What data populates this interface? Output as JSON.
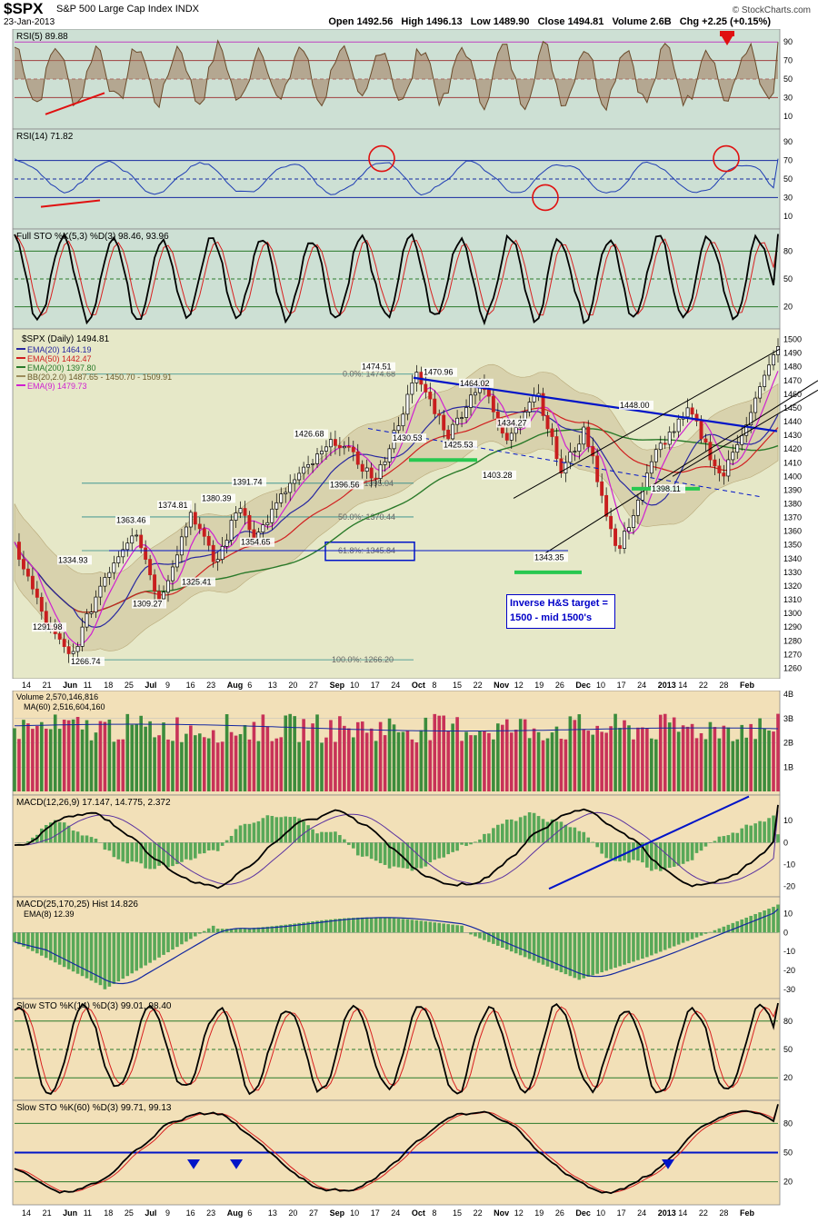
{
  "header": {
    "ticker": "$SPX",
    "name": "S&P 500 Large Cap Index",
    "exchange": "INDX",
    "date": "23-Jan-2013",
    "brand": "© StockCharts.com",
    "open": "Open 1492.56",
    "high": "High 1496.13",
    "low": "Low 1489.90",
    "close": "Close 1494.81",
    "volume": "Volume 2.6B",
    "change": "Chg +2.25 (+0.15%)"
  },
  "colors": {
    "panel_rsi": "#cde0d4",
    "panel_price": "#e6e8c8",
    "panel_lower": "#f0d6b0",
    "price_up": "#000000",
    "price_down": "#c81e1e",
    "ema20": "#2828a0",
    "ema50": "#d02020",
    "ema200": "#2a7a2a",
    "ema9": "#d020d0",
    "trendline": "#0014c8",
    "support": "#28c850",
    "vol_up": "#3c8c3c",
    "vol_down": "#c83258"
  },
  "time_axis": {
    "labels": [
      "14",
      "21",
      "Jun",
      "11",
      "18",
      "25",
      "Jul",
      "9",
      "16",
      "23",
      "Aug",
      "6",
      "13",
      "20",
      "27",
      "Sep",
      "10",
      "17",
      "24",
      "Oct",
      "8",
      "15",
      "22",
      "Nov",
      "12",
      "19",
      "26",
      "Dec",
      "10",
      "17",
      "24",
      "2013",
      "14",
      "22",
      "28",
      "Feb"
    ]
  },
  "chart_data": [
    {
      "type": "line",
      "title": "RSI(5) 89.88",
      "series": [
        {
          "name": "RSI(5)",
          "last": 89.88
        }
      ],
      "y_ticks": [
        90,
        70,
        50,
        30,
        10
      ],
      "ylim": [
        0,
        100
      ],
      "reference_lines": [
        90,
        70,
        50,
        30
      ]
    },
    {
      "type": "line",
      "title": "RSI(14) 71.82",
      "series": [
        {
          "name": "RSI(14)",
          "last": 71.82
        }
      ],
      "y_ticks": [
        90,
        70,
        50,
        30,
        10
      ],
      "ylim": [
        0,
        100
      ],
      "reference_lines": [
        70,
        50,
        30
      ]
    },
    {
      "type": "line",
      "title": "Full STO %K(5,3) %D(3) 98.46, 93.96",
      "series": [
        {
          "name": "%K(5,3)",
          "last": 98.46
        },
        {
          "name": "%D(3)",
          "last": 93.96
        }
      ],
      "y_ticks": [
        80,
        50,
        20
      ],
      "ylim": [
        0,
        100
      ]
    },
    {
      "type": "line",
      "title": "$SPX (Daily) 1494.81",
      "legend": [
        {
          "label": "EMA(20) 1464.19",
          "color": "#2828a0"
        },
        {
          "label": "EMA(50) 1442.47",
          "color": "#d02020"
        },
        {
          "label": "EMA(200) 1397.80",
          "color": "#2a7a2a"
        },
        {
          "label": "BB(20,2.0) 1487.65 - 1450.70 - 1509.91",
          "color": "#9c8c5c"
        },
        {
          "label": "EMA(9) 1479.73",
          "color": "#d020d0"
        }
      ],
      "series": [
        {
          "name": "$SPX",
          "last": 1494.81
        }
      ],
      "y_ticks": [
        1500,
        1490,
        1480,
        1470,
        1460,
        1450,
        1440,
        1430,
        1420,
        1410,
        1400,
        1390,
        1380,
        1370,
        1360,
        1350,
        1340,
        1330,
        1320,
        1310,
        1300,
        1290,
        1280,
        1270,
        1260
      ],
      "ylim": [
        1255,
        1505
      ],
      "price_labels": [
        {
          "label": "1474.51",
          "value": 1474.51
        },
        {
          "label": "1470.96",
          "value": 1470.96
        },
        {
          "label": "1464.02",
          "value": 1464.02
        },
        {
          "label": "1448.00",
          "value": 1448.0
        },
        {
          "label": "1434.27",
          "value": 1434.27
        },
        {
          "label": "1430.53",
          "value": 1430.53
        },
        {
          "label": "1426.68",
          "value": 1426.68
        },
        {
          "label": "1425.53",
          "value": 1425.53
        },
        {
          "label": "1403.28",
          "value": 1403.28
        },
        {
          "label": "1398.11",
          "value": 1398.11
        },
        {
          "label": "1396.56",
          "value": 1396.56
        },
        {
          "label": "1391.74",
          "value": 1391.74
        },
        {
          "label": "1380.39",
          "value": 1380.39
        },
        {
          "label": "1374.81",
          "value": 1374.81
        },
        {
          "label": "1363.46",
          "value": 1363.46
        },
        {
          "label": "1354.65",
          "value": 1354.65
        },
        {
          "label": "1343.35",
          "value": 1343.35
        },
        {
          "label": "1334.93",
          "value": 1334.93
        },
        {
          "label": "1325.41",
          "value": 1325.41
        },
        {
          "label": "1309.27",
          "value": 1309.27
        },
        {
          "label": "1291.98",
          "value": 1291.98
        },
        {
          "label": "1266.74",
          "value": 1266.74
        }
      ],
      "fibonacci": [
        {
          "label": "0.0%: 1474.68",
          "value": 1474.68
        },
        {
          "label": "38.2%: 1395.04",
          "value": 1395.04
        },
        {
          "label": "50.0%: 1370.44",
          "value": 1370.44
        },
        {
          "label": "61.8%: 1345.84",
          "value": 1345.84
        },
        {
          "label": "100.0%: 1266.20",
          "value": 1266.2
        }
      ],
      "annotation": {
        "line1": "Inverse H&S target =",
        "line2": "1500 - mid 1500's"
      }
    },
    {
      "type": "bar",
      "title": "Volume 2,570,146,816",
      "legend": [
        {
          "label": "MA(60) 2,516,604,160"
        }
      ],
      "y_ticks": [
        "4B",
        "3B",
        "2B",
        "1B"
      ],
      "ylim": [
        0,
        4000000000
      ]
    },
    {
      "type": "line",
      "title": "MACD(12,26,9) 17.147, 14.775, 2.372",
      "series": [
        {
          "name": "MACD",
          "last": 17.147
        },
        {
          "name": "Signal",
          "last": 14.775
        },
        {
          "name": "Histogram",
          "last": 2.372
        }
      ],
      "y_ticks": [
        10,
        0,
        -10,
        -20
      ],
      "ylim": [
        -23,
        20
      ]
    },
    {
      "type": "line",
      "title": "MACD(25,170,25) Hist 14.826",
      "legend": [
        {
          "label": "EMA(8) 12.39"
        }
      ],
      "series": [
        {
          "name": "Hist",
          "last": 14.826
        },
        {
          "name": "EMA(8)",
          "last": 12.39
        }
      ],
      "y_ticks": [
        10,
        0,
        -10,
        -20,
        -30
      ],
      "ylim": [
        -33,
        17
      ]
    },
    {
      "type": "line",
      "title": "Slow STO %K(14) %D(3) 99.01, 98.40",
      "series": [
        {
          "name": "%K(14)",
          "last": 99.01
        },
        {
          "name": "%D(3)",
          "last": 98.4
        }
      ],
      "y_ticks": [
        80,
        50,
        20
      ],
      "ylim": [
        0,
        100
      ]
    },
    {
      "type": "line",
      "title": "Slow STO %K(60) %D(3) 99.71, 99.13",
      "series": [
        {
          "name": "%K(60)",
          "last": 99.71
        },
        {
          "name": "%D(3)",
          "last": 99.13
        }
      ],
      "y_ticks": [
        80,
        50,
        20
      ],
      "ylim": [
        0,
        100
      ]
    }
  ]
}
